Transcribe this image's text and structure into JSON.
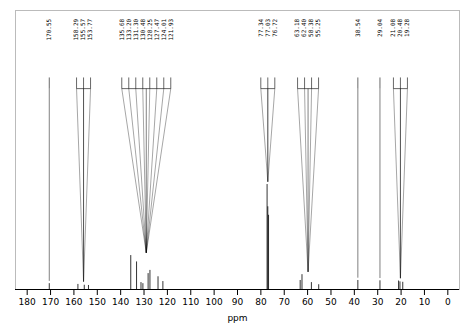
{
  "chart_data": {
    "type": "spectrum",
    "xlabel": "ppm",
    "x": [
      170.55,
      158.29,
      155.57,
      153.77,
      135.68,
      133.2,
      131.3,
      130.48,
      128.25,
      127.47,
      124.01,
      121.93,
      77.34,
      77.03,
      76.72,
      63.18,
      62.4,
      58.38,
      55.25,
      38.5,
      29.04,
      21.08,
      20.48,
      19.28
    ],
    "values": [
      0.0209,
      0.01824,
      0.0152,
      0.01444,
      0.1216,
      0.0988,
      0.0247,
      0.0209,
      0.057,
      0.0684,
      0.0456,
      0.0285,
      0.3762,
      0.2964,
      0.266,
      0.0323,
      0.0532,
      0.0247,
      0.0171,
      0.0323,
      0.03116,
      0.0304,
      0.02736,
      0.02584
    ],
    "color": "black",
    "xlim": [
      185,
      -5
    ],
    "xticks": [
      180,
      170,
      160,
      150,
      140,
      130,
      120,
      110,
      100,
      90,
      80,
      70,
      60,
      50,
      40,
      30,
      20,
      10,
      0
    ],
    "ylim": [
      0,
      1.0
    ],
    "tick_labels": "x",
    "grid": false,
    "annotations": [
      {
        "labels": [
          "170.55"
        ],
        "x": [
          170.55
        ]
      },
      {
        "labels": [
          "158.29",
          "155.57",
          "153.77"
        ],
        "x": [
          158.29,
          155.57,
          153.77
        ]
      },
      {
        "labels": [
          "135.68",
          "133.20",
          "131.30",
          "130.48",
          "128.25",
          "127.47",
          "124.01",
          "121.93"
        ],
        "x": [
          135.68,
          133.2,
          131.3,
          130.48,
          128.25,
          127.47,
          124.01,
          121.93
        ]
      },
      {
        "labels": [
          "77.34",
          "77.03",
          "76.72"
        ],
        "x": [
          77.34,
          77.03,
          76.72
        ]
      },
      {
        "labels": [
          "63.18",
          "62.40",
          "58.38",
          "55.25"
        ],
        "x": [
          63.18,
          62.4,
          58.38,
          55.25
        ]
      },
      {
        "labels": [
          "38.54"
        ],
        "x": [
          38.5
        ]
      },
      {
        "labels": [
          "29.04"
        ],
        "x": [
          29.04
        ]
      },
      {
        "labels": [
          "21.08",
          "20.48",
          "19.28"
        ],
        "x": [
          21.08,
          20.48,
          19.28
        ]
      }
    ]
  }
}
